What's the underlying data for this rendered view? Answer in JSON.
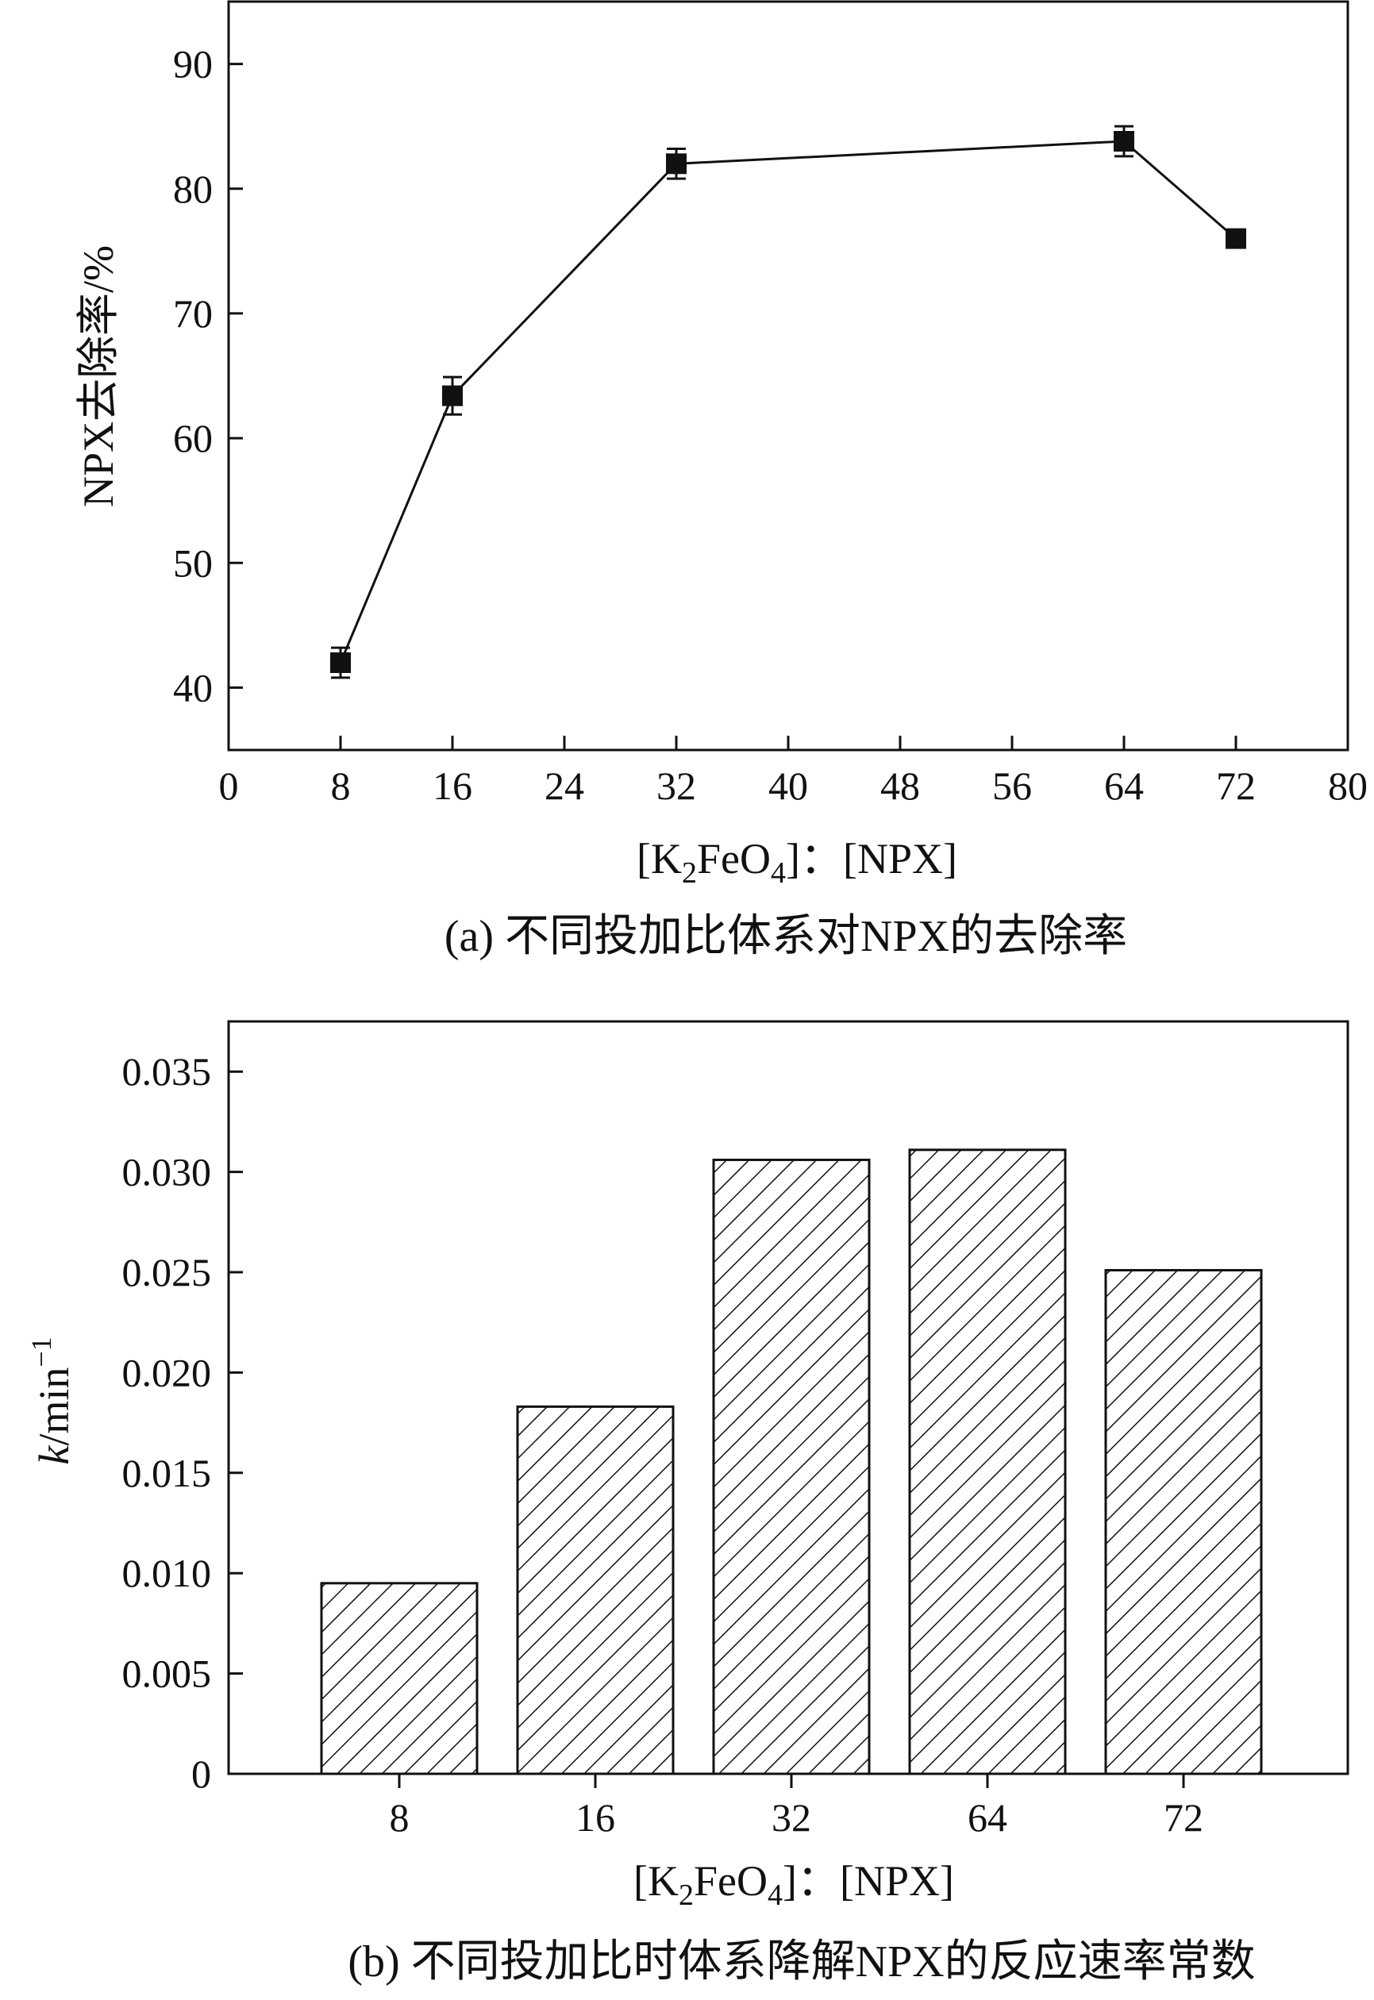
{
  "chart_data": [
    {
      "type": "line",
      "caption": "(a) 不同投加比体系对NPX的去除率",
      "xlabel": {
        "prefix": "[K",
        "sub1": "2",
        "mid": "FeO",
        "sub2": "4",
        "suffix": "]：[NPX]"
      },
      "ylabel": "NPX去除率/%",
      "xlim": [
        0,
        80
      ],
      "ylim": [
        35,
        95
      ],
      "xticks": [
        0,
        8,
        16,
        24,
        32,
        40,
        48,
        56,
        64,
        72,
        80
      ],
      "yticks": [
        40,
        50,
        60,
        70,
        80,
        90
      ],
      "grid": false,
      "series": [
        {
          "x": [
            8,
            16,
            32,
            64,
            72
          ],
          "y": [
            42.0,
            63.4,
            82.0,
            83.8,
            76.0
          ],
          "err": [
            1.2,
            1.5,
            1.2,
            1.2,
            0.7
          ],
          "color": "#111111",
          "marker": "square"
        }
      ]
    },
    {
      "type": "bar",
      "caption": "(b) 不同投加比时体系降解NPX的反应速率常数",
      "xlabel": {
        "prefix": "[K",
        "sub1": "2",
        "mid": "FeO",
        "sub2": "4",
        "suffix": "]：[NPX]"
      },
      "ylabel": {
        "italic": "k",
        "unit": "/min",
        "sup": "−1"
      },
      "categories": [
        "8",
        "16",
        "32",
        "64",
        "72"
      ],
      "values": [
        0.0095,
        0.0183,
        0.0306,
        0.0311,
        0.0251
      ],
      "ylim": [
        0,
        0.0375
      ],
      "yticks": [
        0,
        0.005,
        0.01,
        0.015,
        0.02,
        0.025,
        0.03,
        0.035
      ],
      "ytick_labels": [
        "0",
        "0.005",
        "0.010",
        "0.015",
        "0.020",
        "0.025",
        "0.030",
        "0.035"
      ],
      "fill": "hatched",
      "grid": false
    }
  ]
}
